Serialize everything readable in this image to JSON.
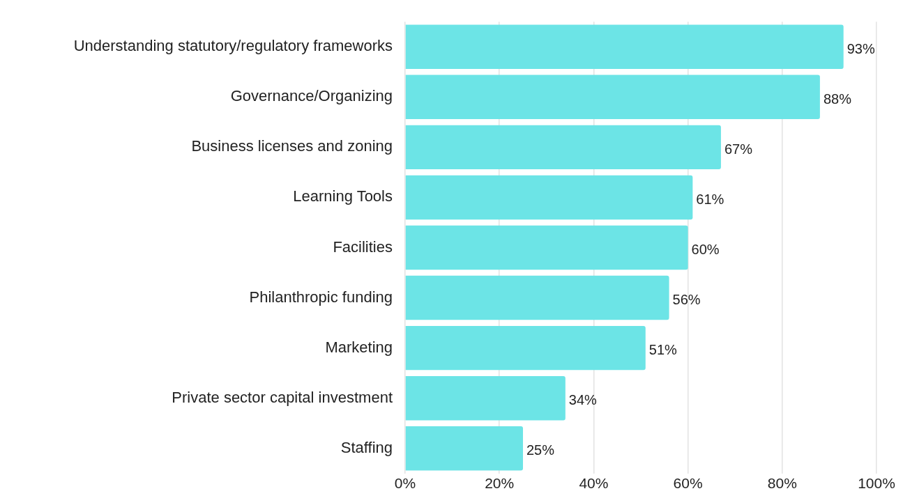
{
  "chart_data": {
    "type": "bar",
    "orientation": "horizontal",
    "categories": [
      "Understanding statutory/regulatory frameworks",
      "Governance/Organizing",
      "Business licenses and zoning",
      "Learning Tools",
      "Facilities",
      "Philanthropic funding",
      "Marketing",
      "Private sector capital investment",
      "Staffing"
    ],
    "values": [
      93,
      88,
      67,
      61,
      60,
      56,
      51,
      34,
      25
    ],
    "value_labels": [
      "93%",
      "88%",
      "67%",
      "61%",
      "60%",
      "56%",
      "51%",
      "34%",
      "25%"
    ],
    "color": "#6ce4e6",
    "xlim": [
      0,
      100
    ],
    "xticks": [
      {
        "value": 0,
        "label": "0%"
      },
      {
        "value": 20,
        "label": "20%"
      },
      {
        "value": 40,
        "label": "40%"
      },
      {
        "value": 60,
        "label": "60%"
      },
      {
        "value": 80,
        "label": "80%"
      },
      {
        "value": 100,
        "label": "100%"
      }
    ],
    "grid": "x"
  }
}
